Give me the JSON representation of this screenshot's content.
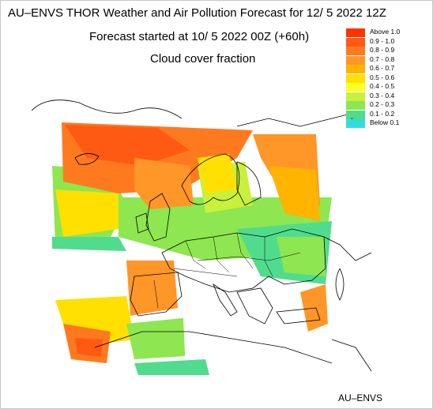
{
  "header": {
    "title": "AU–ENVS THOR Weather and Air Pollution Forecast for 12/ 5 2022  12Z",
    "subtitle": "Forecast started at 10/ 5 2022  00Z (+60h)",
    "field": "Cloud cover fraction"
  },
  "legend": {
    "items": [
      {
        "label": "Above   1.0",
        "color": "#ff3300"
      },
      {
        "label": "0.9  -  1.0",
        "color": "#ff5a14"
      },
      {
        "label": "0.8  -  0.9",
        "color": "#ff7a1e"
      },
      {
        "label": "0.7  -  0.8",
        "color": "#ff9628"
      },
      {
        "label": "0.6  -  0.7",
        "color": "#ffb400"
      },
      {
        "label": "0.5  -  0.6",
        "color": "#ffe000"
      },
      {
        "label": "0.4  -  0.5",
        "color": "#ffff28"
      },
      {
        "label": "0.3  -  0.4",
        "color": "#c8f03c"
      },
      {
        "label": "0.2  -  0.3",
        "color": "#8ee650"
      },
      {
        "label": "0.1  -  0.2",
        "color": "#50dc8c"
      },
      {
        "label": "Below   0.1",
        "color": "#32dcdc",
        "mark": "°"
      }
    ]
  },
  "footer": {
    "credit": "AU–ENVS"
  },
  "colors": {
    "coastline": "#000000",
    "background": "#ffffff",
    "frame": "#c8c8c8"
  }
}
